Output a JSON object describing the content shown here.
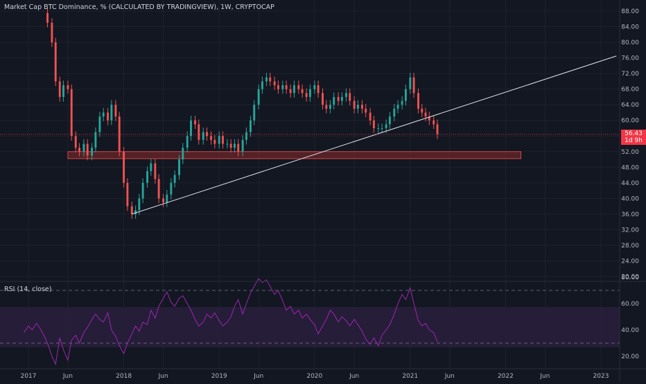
{
  "header": {
    "title": "Market Cap BTC Dominance, % (CALCULATED BY TRADINGVIEW), 1W, CRYPTOCAP",
    "rsi_title": "RSI (14, close)"
  },
  "price_tag": {
    "value": "56.43",
    "countdown": "1d 9h"
  },
  "colors": {
    "background": "#131722",
    "up": "#26a69a",
    "down": "#ef5350",
    "rsi_line": "#9c27b0",
    "rsi_band": "#2a1f3d",
    "zone": "#8b2a2a",
    "trendline": "#e0e3eb",
    "last_price": "#f23645"
  },
  "chart_data": [
    {
      "type": "candlestick",
      "title": "Market Cap BTC Dominance, % (CALCULATED BY TRADINGVIEW), 1W, CRYPTOCAP",
      "y_ticks": [
        "88.00",
        "84.00",
        "80.00",
        "76.00",
        "72.00",
        "68.00",
        "64.00",
        "60.00",
        "56.00",
        "52.00",
        "48.00",
        "44.00",
        "40.00",
        "36.00",
        "32.00",
        "28.00",
        "24.00",
        "20.00"
      ],
      "ylim": [
        18,
        90
      ],
      "x_ticks": [
        "2017",
        "Jun",
        "2018",
        "Jun",
        "2019",
        "Jun",
        "2020",
        "Jun",
        "2021",
        "Jun",
        "2022",
        "Jun",
        "2023"
      ],
      "x_tick_dates": [
        "2017-01-01",
        "2017-06-01",
        "2018-01-01",
        "2018-06-01",
        "2019-01-01",
        "2019-06-01",
        "2020-01-01",
        "2020-06-01",
        "2021-01-01",
        "2021-06-01",
        "2022-01-01",
        "2022-06-01",
        "2023-01-01"
      ],
      "last_price": 56.43,
      "close_series": [
        [
          "2017-03-01",
          87.5
        ],
        [
          "2017-03-15",
          85
        ],
        [
          "2017-04-01",
          80
        ],
        [
          "2017-04-15",
          70
        ],
        [
          "2017-05-01",
          66
        ],
        [
          "2017-05-15",
          69
        ],
        [
          "2017-06-01",
          68
        ],
        [
          "2017-06-15",
          56
        ],
        [
          "2017-07-01",
          53
        ],
        [
          "2017-07-15",
          52
        ],
        [
          "2017-08-01",
          54
        ],
        [
          "2017-08-15",
          51
        ],
        [
          "2017-09-01",
          53
        ],
        [
          "2017-09-15",
          57
        ],
        [
          "2017-10-01",
          61
        ],
        [
          "2017-10-15",
          62
        ],
        [
          "2017-11-01",
          60
        ],
        [
          "2017-11-15",
          64
        ],
        [
          "2017-12-01",
          61
        ],
        [
          "2017-12-15",
          52
        ],
        [
          "2018-01-01",
          44
        ],
        [
          "2018-01-15",
          38
        ],
        [
          "2018-02-01",
          36
        ],
        [
          "2018-02-15",
          37
        ],
        [
          "2018-03-01",
          40
        ],
        [
          "2018-03-15",
          44
        ],
        [
          "2018-04-01",
          47
        ],
        [
          "2018-04-15",
          49
        ],
        [
          "2018-05-01",
          45
        ],
        [
          "2018-05-15",
          40
        ],
        [
          "2018-06-01",
          39
        ],
        [
          "2018-06-15",
          41
        ],
        [
          "2018-07-01",
          44
        ],
        [
          "2018-07-15",
          46
        ],
        [
          "2018-08-01",
          50
        ],
        [
          "2018-08-15",
          53
        ],
        [
          "2018-09-01",
          56
        ],
        [
          "2018-09-15",
          60
        ],
        [
          "2018-10-01",
          59
        ],
        [
          "2018-10-15",
          55
        ],
        [
          "2018-11-01",
          57
        ],
        [
          "2018-11-15",
          56
        ],
        [
          "2018-12-01",
          55
        ],
        [
          "2018-12-15",
          54
        ],
        [
          "2019-01-01",
          56
        ],
        [
          "2019-01-15",
          54
        ],
        [
          "2019-02-01",
          54
        ],
        [
          "2019-02-15",
          53
        ],
        [
          "2019-03-01",
          54
        ],
        [
          "2019-03-15",
          52
        ],
        [
          "2019-04-01",
          55
        ],
        [
          "2019-04-15",
          57
        ],
        [
          "2019-05-01",
          60
        ],
        [
          "2019-05-15",
          64
        ],
        [
          "2019-06-01",
          68
        ],
        [
          "2019-06-15",
          70
        ],
        [
          "2019-07-01",
          71
        ],
        [
          "2019-07-15",
          70
        ],
        [
          "2019-08-01",
          69
        ],
        [
          "2019-08-15",
          68
        ],
        [
          "2019-09-01",
          69
        ],
        [
          "2019-09-15",
          68
        ],
        [
          "2019-10-01",
          67
        ],
        [
          "2019-10-15",
          69
        ],
        [
          "2019-11-01",
          68
        ],
        [
          "2019-11-15",
          67
        ],
        [
          "2019-12-01",
          66
        ],
        [
          "2019-12-15",
          68
        ],
        [
          "2020-01-01",
          69
        ],
        [
          "2020-01-15",
          67
        ],
        [
          "2020-02-01",
          64
        ],
        [
          "2020-02-15",
          63
        ],
        [
          "2020-03-01",
          64
        ],
        [
          "2020-03-15",
          66
        ],
        [
          "2020-04-01",
          65
        ],
        [
          "2020-04-15",
          66
        ],
        [
          "2020-05-01",
          67
        ],
        [
          "2020-05-15",
          65
        ],
        [
          "2020-06-01",
          63
        ],
        [
          "2020-06-15",
          64
        ],
        [
          "2020-07-01",
          63
        ],
        [
          "2020-07-15",
          62
        ],
        [
          "2020-08-01",
          60
        ],
        [
          "2020-08-15",
          58
        ],
        [
          "2020-09-01",
          58
        ],
        [
          "2020-09-15",
          58
        ],
        [
          "2020-10-01",
          59
        ],
        [
          "2020-10-15",
          61
        ],
        [
          "2020-11-01",
          63
        ],
        [
          "2020-11-15",
          64
        ],
        [
          "2020-12-01",
          65
        ],
        [
          "2020-12-15",
          68
        ],
        [
          "2021-01-01",
          71
        ],
        [
          "2021-01-15",
          67
        ],
        [
          "2021-02-01",
          63
        ],
        [
          "2021-02-15",
          62
        ],
        [
          "2021-03-01",
          61
        ],
        [
          "2021-03-15",
          60
        ],
        [
          "2021-04-01",
          59
        ],
        [
          "2021-04-15",
          56.43
        ]
      ],
      "zone": {
        "top": 52,
        "bottom": 50.2,
        "start": "2017-06-01",
        "end": "2022-03-01"
      },
      "trendline": {
        "start": [
          "2018-02-01",
          36
        ],
        "end": [
          "2023-03-01",
          76.5
        ]
      }
    },
    {
      "type": "line",
      "title": "RSI (14, close)",
      "y_ticks": [
        "80.00",
        "60.00",
        "40.00",
        "20.00"
      ],
      "ylim": [
        10,
        88
      ],
      "levels": [
        70,
        30
      ],
      "series": [
        {
          "values": [
            [
              "2016-12-15",
              38
            ],
            [
              "2017-01-01",
              43
            ],
            [
              "2017-01-15",
              40
            ],
            [
              "2017-02-01",
              45
            ],
            [
              "2017-02-15",
              41
            ],
            [
              "2017-03-01",
              36
            ],
            [
              "2017-03-15",
              30
            ],
            [
              "2017-04-01",
              20
            ],
            [
              "2017-04-15",
              14
            ],
            [
              "2017-05-01",
              34
            ],
            [
              "2017-05-15",
              25
            ],
            [
              "2017-06-01",
              17
            ],
            [
              "2017-06-15",
              32
            ],
            [
              "2017-07-01",
              36
            ],
            [
              "2017-07-15",
              30
            ],
            [
              "2017-08-01",
              38
            ],
            [
              "2017-08-15",
              42
            ],
            [
              "2017-09-01",
              48
            ],
            [
              "2017-09-15",
              52
            ],
            [
              "2017-10-01",
              48
            ],
            [
              "2017-10-15",
              46
            ],
            [
              "2017-11-01",
              53
            ],
            [
              "2017-11-15",
              40
            ],
            [
              "2017-12-01",
              35
            ],
            [
              "2017-12-15",
              28
            ],
            [
              "2018-01-01",
              22
            ],
            [
              "2018-01-15",
              30
            ],
            [
              "2018-02-01",
              37
            ],
            [
              "2018-02-15",
              43
            ],
            [
              "2018-03-01",
              39
            ],
            [
              "2018-03-15",
              46
            ],
            [
              "2018-04-01",
              44
            ],
            [
              "2018-04-15",
              55
            ],
            [
              "2018-05-01",
              49
            ],
            [
              "2018-05-15",
              58
            ],
            [
              "2018-06-01",
              64
            ],
            [
              "2018-06-15",
              69
            ],
            [
              "2018-07-01",
              61
            ],
            [
              "2018-07-15",
              58
            ],
            [
              "2018-08-01",
              64
            ],
            [
              "2018-08-15",
              66
            ],
            [
              "2018-09-01",
              60
            ],
            [
              "2018-09-15",
              55
            ],
            [
              "2018-10-01",
              48
            ],
            [
              "2018-10-15",
              43
            ],
            [
              "2018-11-01",
              46
            ],
            [
              "2018-11-15",
              52
            ],
            [
              "2018-12-01",
              49
            ],
            [
              "2018-12-15",
              53
            ],
            [
              "2019-01-01",
              47
            ],
            [
              "2019-01-15",
              43
            ],
            [
              "2019-02-01",
              46
            ],
            [
              "2019-02-15",
              50
            ],
            [
              "2019-03-01",
              58
            ],
            [
              "2019-03-15",
              63
            ],
            [
              "2019-04-01",
              52
            ],
            [
              "2019-04-15",
              60
            ],
            [
              "2019-05-01",
              68
            ],
            [
              "2019-05-15",
              73
            ],
            [
              "2019-06-01",
              79
            ],
            [
              "2019-06-15",
              76
            ],
            [
              "2019-07-01",
              78
            ],
            [
              "2019-07-15",
              73
            ],
            [
              "2019-08-01",
              67
            ],
            [
              "2019-08-15",
              70
            ],
            [
              "2019-09-01",
              62
            ],
            [
              "2019-09-15",
              55
            ],
            [
              "2019-10-01",
              58
            ],
            [
              "2019-10-15",
              52
            ],
            [
              "2019-11-01",
              55
            ],
            [
              "2019-11-15",
              49
            ],
            [
              "2019-12-01",
              52
            ],
            [
              "2019-12-15",
              48
            ],
            [
              "2020-01-01",
              44
            ],
            [
              "2020-01-15",
              37
            ],
            [
              "2020-02-01",
              43
            ],
            [
              "2020-02-15",
              48
            ],
            [
              "2020-03-01",
              55
            ],
            [
              "2020-03-15",
              52
            ],
            [
              "2020-04-01",
              46
            ],
            [
              "2020-04-15",
              50
            ],
            [
              "2020-05-01",
              47
            ],
            [
              "2020-05-15",
              43
            ],
            [
              "2020-06-01",
              48
            ],
            [
              "2020-06-15",
              44
            ],
            [
              "2020-07-01",
              39
            ],
            [
              "2020-07-15",
              33
            ],
            [
              "2020-08-01",
              29
            ],
            [
              "2020-08-15",
              34
            ],
            [
              "2020-09-01",
              28
            ],
            [
              "2020-09-15",
              36
            ],
            [
              "2020-10-01",
              40
            ],
            [
              "2020-10-15",
              44
            ],
            [
              "2020-11-01",
              52
            ],
            [
              "2020-11-15",
              60
            ],
            [
              "2020-12-01",
              67
            ],
            [
              "2020-12-15",
              63
            ],
            [
              "2021-01-01",
              72
            ],
            [
              "2021-01-15",
              60
            ],
            [
              "2021-02-01",
              47
            ],
            [
              "2021-02-15",
              43
            ],
            [
              "2021-03-01",
              45
            ],
            [
              "2021-03-15",
              40
            ],
            [
              "2021-04-01",
              38
            ],
            [
              "2021-04-15",
              31
            ]
          ]
        }
      ]
    }
  ]
}
